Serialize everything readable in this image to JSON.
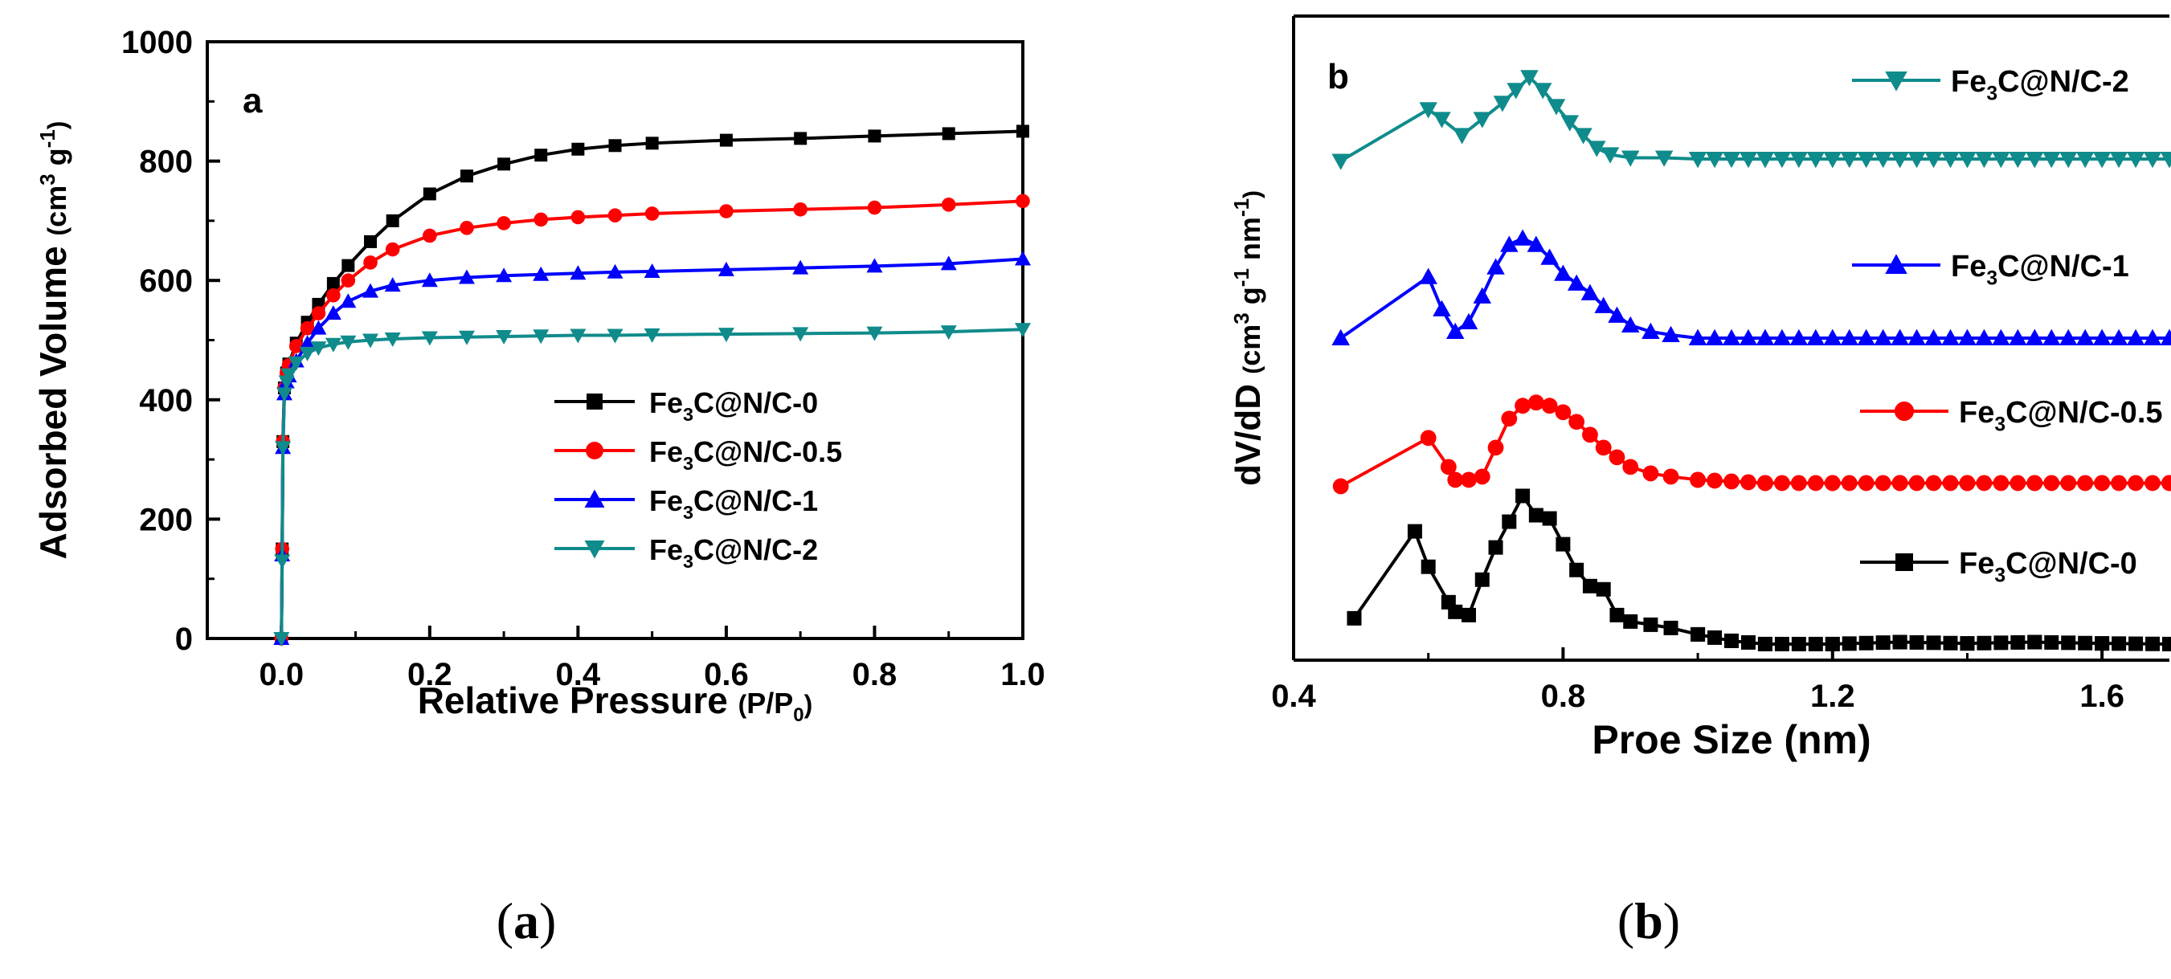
{
  "chart_data": [
    {
      "panel": "a",
      "type": "line",
      "title": "",
      "xlabel": "Relative Pressure",
      "xlabel_paren_pre": "P/P",
      "xlabel_paren_sub": "0",
      "ylabel": "Adsorbed Volume",
      "ylabel_paren_pre": "cm",
      "ylabel_paren_sup1": "3",
      "ylabel_paren_mid": " g",
      "ylabel_paren_sup2": "-1",
      "xlim": [
        -0.1,
        1.0
      ],
      "ylim": [
        0,
        1000
      ],
      "xticks": [
        "0.0",
        "0.2",
        "0.4",
        "0.6",
        "0.8",
        "1.0"
      ],
      "xtick_values": [
        0.0,
        0.2,
        0.4,
        0.6,
        0.8,
        1.0
      ],
      "yticks": [
        "0",
        "200",
        "400",
        "600",
        "800",
        "1000"
      ],
      "ytick_values": [
        0,
        200,
        400,
        600,
        800,
        1000
      ],
      "legend_position": "bottom-right",
      "series": [
        {
          "name": "Fe3C@N/C-0",
          "label_pre": "Fe",
          "label_sub": "3",
          "label_post": "C@N/C-0",
          "color": "#000000",
          "marker": "square",
          "x": [
            0.0,
            0.001,
            0.002,
            0.004,
            0.007,
            0.01,
            0.02,
            0.035,
            0.05,
            0.07,
            0.09,
            0.12,
            0.15,
            0.2,
            0.25,
            0.3,
            0.35,
            0.4,
            0.45,
            0.5,
            0.6,
            0.7,
            0.8,
            0.9,
            1.0
          ],
          "y": [
            0,
            150,
            330,
            420,
            445,
            460,
            495,
            530,
            560,
            595,
            625,
            665,
            700,
            745,
            775,
            795,
            810,
            820,
            826,
            830,
            835,
            838,
            842,
            846,
            850
          ]
        },
        {
          "name": "Fe3C@N/C-0.5",
          "label_pre": "Fe",
          "label_sub": "3",
          "label_post": "C@N/C-0.5",
          "color": "#ff0000",
          "marker": "circle",
          "x": [
            0.0,
            0.001,
            0.002,
            0.004,
            0.007,
            0.01,
            0.02,
            0.035,
            0.05,
            0.07,
            0.09,
            0.12,
            0.15,
            0.2,
            0.25,
            0.3,
            0.35,
            0.4,
            0.45,
            0.5,
            0.6,
            0.7,
            0.8,
            0.9,
            1.0
          ],
          "y": [
            0,
            150,
            330,
            420,
            445,
            458,
            490,
            520,
            545,
            575,
            600,
            630,
            652,
            675,
            688,
            696,
            702,
            706,
            709,
            712,
            716,
            719,
            722,
            727,
            733
          ]
        },
        {
          "name": "Fe3C@N/C-1",
          "label_pre": "Fe",
          "label_sub": "3",
          "label_post": "C@N/C-1",
          "color": "#0000ff",
          "marker": "triangle-up",
          "x": [
            0.0,
            0.001,
            0.002,
            0.004,
            0.007,
            0.01,
            0.02,
            0.035,
            0.05,
            0.07,
            0.09,
            0.12,
            0.15,
            0.2,
            0.25,
            0.3,
            0.35,
            0.4,
            0.45,
            0.5,
            0.6,
            0.7,
            0.8,
            0.9,
            1.0
          ],
          "y": [
            0,
            140,
            320,
            410,
            430,
            440,
            465,
            495,
            520,
            545,
            565,
            582,
            592,
            600,
            605,
            608,
            610,
            612,
            614,
            615,
            618,
            621,
            624,
            628,
            636
          ]
        },
        {
          "name": "Fe3C@N/C-2",
          "label_pre": "Fe",
          "label_sub": "3",
          "label_post": "C@N/C-2",
          "color": "#108b8b",
          "marker": "triangle-down",
          "x": [
            0.0,
            0.001,
            0.002,
            0.004,
            0.007,
            0.01,
            0.02,
            0.035,
            0.05,
            0.07,
            0.09,
            0.12,
            0.15,
            0.2,
            0.25,
            0.3,
            0.35,
            0.4,
            0.45,
            0.5,
            0.6,
            0.7,
            0.8,
            0.9,
            1.0
          ],
          "y": [
            0,
            130,
            320,
            410,
            430,
            442,
            462,
            478,
            487,
            493,
            497,
            500,
            502,
            504,
            505,
            506,
            507,
            508,
            508,
            509,
            510,
            511,
            512,
            514,
            518
          ]
        }
      ]
    },
    {
      "panel": "b",
      "type": "line",
      "title": "",
      "xlabel": "Proe Size (nm)",
      "ylabel": "dV/dD",
      "ylabel_paren_pre": "cm",
      "ylabel_paren_sup1": "3",
      "ylabel_paren_mid": " g",
      "ylabel_paren_sup2": "-1",
      "ylabel_paren_mid2": " nm",
      "ylabel_paren_sup3": "-1",
      "y_units": "arbitrary (vertically offset curves, no y tick labels)",
      "xlim": [
        0.4,
        1.7
      ],
      "ylim": [
        0,
        1.0
      ],
      "xticks": [
        "0.4",
        "0.8",
        "1.2",
        "1.6"
      ],
      "xtick_values": [
        0.4,
        0.8,
        1.2,
        1.6
      ],
      "legend_position": "right, next to each curve",
      "series": [
        {
          "name": "Fe3C@N/C-0",
          "label_pre": "Fe",
          "label_sub": "3",
          "label_post": "C@N/C-0",
          "color": "#000000",
          "marker": "square",
          "x": [
            0.49,
            0.58,
            0.6,
            0.63,
            0.64,
            0.66,
            0.68,
            0.7,
            0.72,
            0.74,
            0.76,
            0.78,
            0.8,
            0.82,
            0.84,
            0.86,
            0.88,
            0.9,
            0.93,
            0.96,
            1.0,
            1.05,
            1.1,
            1.2,
            1.3,
            1.4,
            1.5,
            1.6,
            1.7
          ],
          "y": [
            0.065,
            0.2,
            0.145,
            0.09,
            0.075,
            0.07,
            0.125,
            0.175,
            0.215,
            0.255,
            0.225,
            0.22,
            0.18,
            0.14,
            0.115,
            0.11,
            0.07,
            0.06,
            0.055,
            0.05,
            0.04,
            0.03,
            0.025,
            0.025,
            0.028,
            0.026,
            0.028,
            0.026,
            0.025
          ]
        },
        {
          "name": "Fe3C@N/C-0.5",
          "label_pre": "Fe",
          "label_sub": "3",
          "label_post": "C@N/C-0.5",
          "color": "#ff0000",
          "marker": "circle",
          "x": [
            0.47,
            0.6,
            0.63,
            0.64,
            0.66,
            0.68,
            0.7,
            0.72,
            0.74,
            0.76,
            0.78,
            0.8,
            0.82,
            0.84,
            0.86,
            0.88,
            0.9,
            0.93,
            0.96,
            1.0,
            1.1,
            1.2,
            1.3,
            1.4,
            1.5,
            1.6,
            1.7
          ],
          "y": [
            0.27,
            0.345,
            0.3,
            0.28,
            0.28,
            0.285,
            0.33,
            0.375,
            0.395,
            0.4,
            0.395,
            0.385,
            0.37,
            0.35,
            0.33,
            0.315,
            0.3,
            0.29,
            0.285,
            0.28,
            0.275,
            0.275,
            0.275,
            0.275,
            0.275,
            0.275,
            0.275
          ]
        },
        {
          "name": "Fe3C@N/C-1",
          "label_pre": "Fe",
          "label_sub": "3",
          "label_post": "C@N/C-1",
          "color": "#0000ff",
          "marker": "triangle-up",
          "x": [
            0.47,
            0.6,
            0.62,
            0.64,
            0.66,
            0.68,
            0.7,
            0.72,
            0.74,
            0.76,
            0.78,
            0.8,
            0.82,
            0.84,
            0.86,
            0.88,
            0.9,
            0.93,
            0.96,
            1.0,
            1.1,
            1.2,
            1.3,
            1.4,
            1.5,
            1.6,
            1.7
          ],
          "y": [
            0.5,
            0.595,
            0.545,
            0.51,
            0.525,
            0.565,
            0.61,
            0.645,
            0.655,
            0.645,
            0.625,
            0.6,
            0.585,
            0.57,
            0.55,
            0.535,
            0.52,
            0.51,
            0.505,
            0.5,
            0.5,
            0.5,
            0.5,
            0.5,
            0.5,
            0.5,
            0.5
          ]
        },
        {
          "name": "Fe3C@N/C-2",
          "label_pre": "Fe",
          "label_sub": "3",
          "label_post": "C@N/C-2",
          "color": "#108b8b",
          "marker": "triangle-down",
          "x": [
            0.47,
            0.6,
            0.62,
            0.65,
            0.68,
            0.71,
            0.73,
            0.75,
            0.77,
            0.79,
            0.81,
            0.83,
            0.85,
            0.87,
            0.9,
            0.95,
            1.0,
            1.1,
            1.2,
            1.3,
            1.4,
            1.5,
            1.6,
            1.7
          ],
          "y": [
            0.775,
            0.855,
            0.84,
            0.815,
            0.84,
            0.865,
            0.885,
            0.905,
            0.885,
            0.86,
            0.835,
            0.815,
            0.795,
            0.785,
            0.78,
            0.78,
            0.778,
            0.778,
            0.778,
            0.778,
            0.778,
            0.778,
            0.778,
            0.778
          ]
        }
      ]
    }
  ],
  "captions": [
    "a",
    "b"
  ]
}
